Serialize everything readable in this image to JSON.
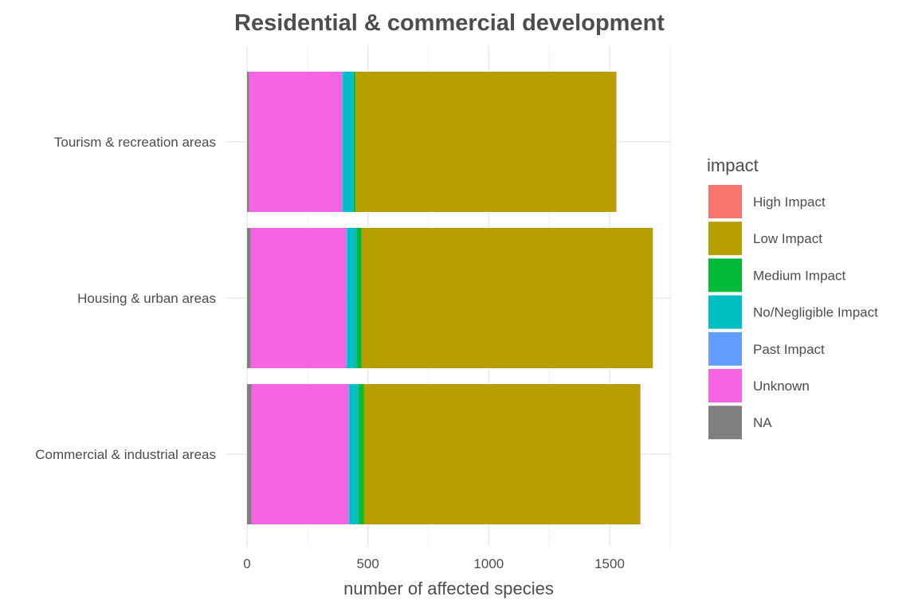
{
  "chart_data": {
    "type": "bar",
    "orientation": "horizontal",
    "stacked": true,
    "title": "Residential & commercial development",
    "xlabel": "number of affected species",
    "ylabel": "",
    "categories": [
      "Commercial & industrial areas",
      "Housing & urban areas",
      "Tourism & recreation areas"
    ],
    "xlim": [
      0,
      1750
    ],
    "xticks": [
      0,
      500,
      1000,
      1500
    ],
    "xtick_labels": [
      "0",
      "500",
      "1000",
      "1500"
    ],
    "grid": true,
    "legend": {
      "title": "impact",
      "position": "right"
    },
    "series": [
      {
        "name": "NA",
        "color": "#7F7F7F",
        "values": [
          18,
          15,
          8
        ]
      },
      {
        "name": "Unknown",
        "color": "#F564E3",
        "values": [
          402,
          395,
          385
        ]
      },
      {
        "name": "Past Impact",
        "color": "#619CFF",
        "values": [
          3,
          3,
          3
        ]
      },
      {
        "name": "No/Negligible Impact",
        "color": "#00BFC4",
        "values": [
          38,
          40,
          45
        ]
      },
      {
        "name": "Medium Impact",
        "color": "#00BA38",
        "values": [
          22,
          20,
          8
        ]
      },
      {
        "name": "Low Impact",
        "color": "#B79F00",
        "values": [
          1143,
          1206,
          1078
        ]
      },
      {
        "name": "High Impact",
        "color": "#F8766D",
        "values": [
          2,
          0,
          1
        ]
      }
    ],
    "legend_order": [
      "High Impact",
      "Low Impact",
      "Medium Impact",
      "No/Negligible Impact",
      "Past Impact",
      "Unknown",
      "NA"
    ]
  }
}
